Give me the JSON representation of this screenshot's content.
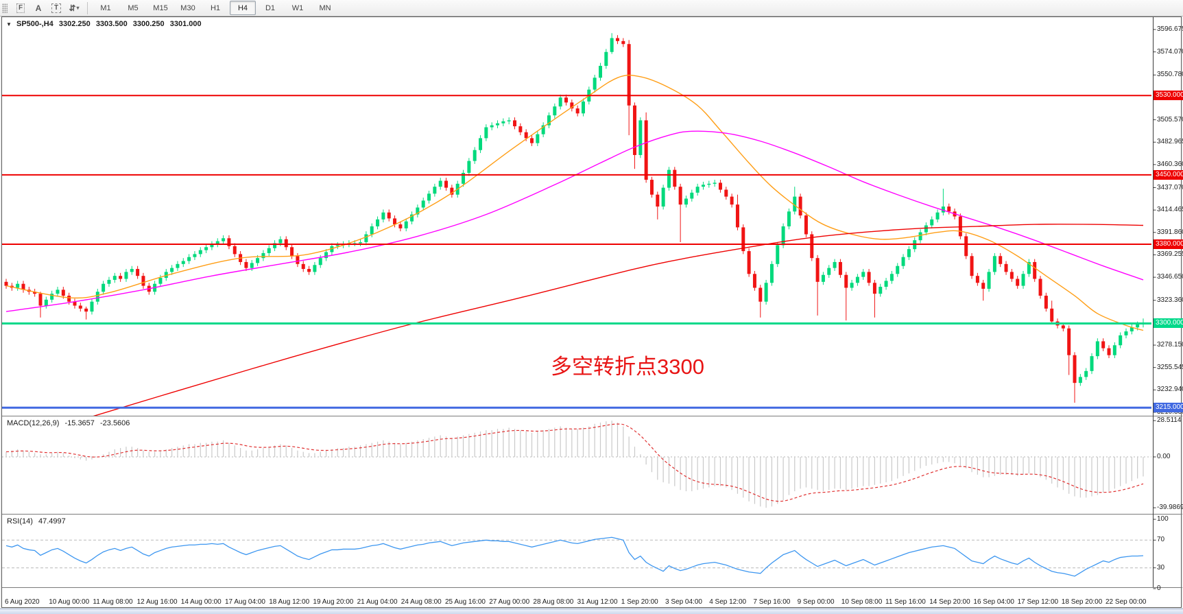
{
  "toolbar": {
    "tools": [
      {
        "name": "fibonacci-tool",
        "glyph": "F"
      },
      {
        "name": "text-tool",
        "glyph": "A"
      },
      {
        "name": "text-label-tool",
        "glyph": "T"
      },
      {
        "name": "arrows-tool",
        "glyph": "⇵"
      }
    ],
    "dropdown_caret": "▾",
    "timeframes": [
      "M1",
      "M5",
      "M15",
      "M30",
      "H1",
      "H4",
      "D1",
      "W1",
      "MN"
    ],
    "active_timeframe": "H4"
  },
  "title_bar": {
    "collapse_glyph": "▼",
    "symbol": "SP500-,H4",
    "open": "3302.250",
    "high": "3303.500",
    "low": "3300.250",
    "close": "3301.000"
  },
  "chart_data": {
    "type": "candlestick",
    "symbol": "SP500-",
    "timeframe": "H4",
    "ohlc_display": {
      "open": "3302.250",
      "high": "3303.500",
      "low": "3300.250",
      "close": "3301.000"
    },
    "colors": {
      "up": "#00d97c",
      "down": "#f01414",
      "level_red": "#ee0000",
      "level_green": "#00e57d",
      "level_blue": "#4169e1"
    },
    "y_axis_ticks": [
      "3596.675",
      "3574.070",
      "3550.780",
      "3505.570",
      "3482.965",
      "3460.360",
      "3437.070",
      "3414.465",
      "3391.860",
      "3369.255",
      "3346.650",
      "3323.360",
      "3278.150",
      "3255.545",
      "3232.940",
      "3210.335"
    ],
    "level_badges": [
      {
        "label": "3530.000",
        "price": 3530,
        "color": "#ee0000",
        "width": 2
      },
      {
        "label": "3450.000",
        "price": 3450,
        "color": "#ee0000",
        "width": 2
      },
      {
        "label": "3380.000",
        "price": 3380,
        "color": "#ee0000",
        "width": 2
      },
      {
        "label": "3300.000",
        "price": 3300,
        "color": "#00d98a",
        "width": 3
      },
      {
        "label": "3215.000",
        "price": 3215,
        "color": "#4169e1",
        "width": 3
      }
    ],
    "x_axis": [
      "6 Aug 2020",
      "10 Aug 00:00",
      "11 Aug 08:00",
      "12 Aug 16:00",
      "14 Aug 00:00",
      "17 Aug 04:00",
      "18 Aug 12:00",
      "19 Aug 20:00",
      "21 Aug 04:00",
      "24 Aug 08:00",
      "25 Aug 16:00",
      "27 Aug 00:00",
      "28 Aug 08:00",
      "31 Aug 12:00",
      "1 Sep 20:00",
      "3 Sep 04:00",
      "4 Sep 12:00",
      "7 Sep 16:00",
      "9 Sep 00:00",
      "10 Sep 08:00",
      "11 Sep 16:00",
      "14 Sep 20:00",
      "16 Sep 04:00",
      "17 Sep 12:00",
      "18 Sep 20:00",
      "22 Sep 00:00"
    ],
    "candles": {
      "open0": 3342,
      "default_wick": 3,
      "closes": [
        3338,
        3336,
        3340,
        3334,
        3332,
        3330,
        3318,
        3324,
        3330,
        3334,
        3328,
        3322,
        3318,
        3315,
        3312,
        3322,
        3332,
        3340,
        3344,
        3348,
        3345,
        3352,
        3355,
        3348,
        3338,
        3332,
        3340,
        3346,
        3352,
        3356,
        3360,
        3363,
        3367,
        3370,
        3374,
        3377,
        3380,
        3383,
        3386,
        3378,
        3370,
        3362,
        3356,
        3361,
        3366,
        3371,
        3376,
        3381,
        3385,
        3377,
        3368,
        3360,
        3355,
        3352,
        3359,
        3366,
        3372,
        3378,
        3379,
        3380,
        3381,
        3381,
        3382,
        3390,
        3398,
        3405,
        3412,
        3406,
        3400,
        3396,
        3403,
        3410,
        3417,
        3424,
        3431,
        3438,
        3444,
        3437,
        3430,
        3441,
        3452,
        3464,
        3475,
        3487,
        3498,
        3500,
        3502,
        3504,
        3505,
        3499,
        3493,
        3487,
        3482,
        3491,
        3500,
        3510,
        3519,
        3528,
        3523,
        3517,
        3512,
        3524,
        3536,
        3548,
        3560,
        3574,
        3588,
        3585,
        3582,
        3520,
        3470,
        3505,
        3445,
        3430,
        3418,
        3437,
        3455,
        3438,
        3420,
        3426,
        3432,
        3438,
        3440,
        3441,
        3442,
        3435,
        3428,
        3420,
        3397,
        3373,
        3350,
        3336,
        3322,
        3341,
        3360,
        3379,
        3398,
        3413,
        3428,
        3409,
        3390,
        3366,
        3342,
        3349,
        3356,
        3362,
        3349,
        3336,
        3341,
        3347,
        3352,
        3341,
        3330,
        3337,
        3343,
        3350,
        3358,
        3367,
        3375,
        3384,
        3392,
        3399,
        3405,
        3412,
        3418,
        3413,
        3408,
        3388,
        3368,
        3348,
        3341,
        3335,
        3352,
        3368,
        3360,
        3352,
        3345,
        3338,
        3350,
        3362,
        3345,
        3328,
        3315,
        3302,
        3298,
        3295,
        3268,
        3240,
        3246,
        3252,
        3267,
        3282,
        3275,
        3268,
        3278,
        3288,
        3292,
        3296,
        3299,
        3301
      ],
      "long_wicks": {
        "6": [
          2,
          12
        ],
        "14": [
          2,
          8
        ],
        "106": [
          5,
          2
        ],
        "109": [
          4,
          30
        ],
        "110": [
          3,
          14
        ],
        "112": [
          8,
          3
        ],
        "114": [
          3,
          13
        ],
        "118": [
          3,
          38
        ],
        "128": [
          10,
          3
        ],
        "132": [
          3,
          16
        ],
        "138": [
          10,
          3
        ],
        "142": [
          3,
          34
        ],
        "147": [
          3,
          33
        ],
        "152": [
          3,
          24
        ],
        "164": [
          18,
          3
        ],
        "171": [
          3,
          12
        ],
        "183": [
          8,
          3
        ],
        "186": [
          3,
          20
        ],
        "187": [
          3,
          20
        ],
        "199": [
          4,
          3
        ]
      }
    },
    "moving_averages": [
      {
        "name": "ma-fast",
        "color": "#ff9e16",
        "points": [
          [
            0,
            3338
          ],
          [
            11,
            3326
          ],
          [
            18,
            3331
          ],
          [
            29,
            3350
          ],
          [
            41,
            3366
          ],
          [
            53,
            3370
          ],
          [
            65,
            3392
          ],
          [
            77,
            3428
          ],
          [
            89,
            3478
          ],
          [
            101,
            3526
          ],
          [
            107,
            3548
          ],
          [
            111,
            3549
          ],
          [
            116,
            3538
          ],
          [
            121,
            3520
          ],
          [
            125,
            3495
          ],
          [
            130,
            3462
          ],
          [
            134,
            3438
          ],
          [
            139,
            3415
          ],
          [
            143,
            3400
          ],
          [
            148,
            3390
          ],
          [
            153,
            3385
          ],
          [
            158,
            3387
          ],
          [
            163,
            3392
          ],
          [
            167,
            3393
          ],
          [
            172,
            3384
          ],
          [
            177,
            3368
          ],
          [
            182,
            3348
          ],
          [
            187,
            3328
          ],
          [
            191,
            3310
          ],
          [
            196,
            3298
          ],
          [
            199,
            3293
          ]
        ]
      },
      {
        "name": "ma-medium",
        "color": "#ff00ff",
        "points": [
          [
            0,
            3312
          ],
          [
            12,
            3322
          ],
          [
            24,
            3334
          ],
          [
            36,
            3348
          ],
          [
            48,
            3360
          ],
          [
            60,
            3372
          ],
          [
            72,
            3388
          ],
          [
            84,
            3410
          ],
          [
            96,
            3440
          ],
          [
            104,
            3462
          ],
          [
            110,
            3478
          ],
          [
            116,
            3490
          ],
          [
            120,
            3494
          ],
          [
            126,
            3492
          ],
          [
            132,
            3484
          ],
          [
            138,
            3472
          ],
          [
            144,
            3458
          ],
          [
            150,
            3443
          ],
          [
            156,
            3430
          ],
          [
            162,
            3418
          ],
          [
            168,
            3407
          ],
          [
            174,
            3396
          ],
          [
            180,
            3384
          ],
          [
            186,
            3371
          ],
          [
            192,
            3358
          ],
          [
            197,
            3348
          ],
          [
            199,
            3344
          ]
        ]
      },
      {
        "name": "ma-slow",
        "color": "#ee0000",
        "points": [
          [
            15,
            3206
          ],
          [
            30,
            3232
          ],
          [
            50,
            3266
          ],
          [
            70,
            3298
          ],
          [
            90,
            3326
          ],
          [
            110,
            3355
          ],
          [
            120,
            3367
          ],
          [
            130,
            3377
          ],
          [
            140,
            3386
          ],
          [
            150,
            3392
          ],
          [
            160,
            3396
          ],
          [
            170,
            3398
          ],
          [
            180,
            3400
          ],
          [
            190,
            3400
          ],
          [
            199,
            3399
          ]
        ]
      }
    ],
    "macd": {
      "name": "MACD(12,26,9)",
      "value1": "-15.3657",
      "value2": "-23.5606",
      "axis": [
        {
          "v": 28.5114,
          "label": "28.5114"
        },
        {
          "v": 0,
          "label": "0.00"
        },
        {
          "v": -39.9869,
          "label": "-39.9869"
        }
      ],
      "histogram_color": "#c9c9c9",
      "signal_color": "#e03030",
      "values": [
        4,
        5,
        6,
        5,
        4,
        3,
        2,
        2,
        3,
        4,
        3,
        1,
        -1,
        -2,
        -3,
        -2,
        0,
        2,
        4,
        6,
        7,
        8,
        8,
        7,
        5,
        4,
        4,
        5,
        6,
        7,
        8,
        9,
        10,
        10,
        11,
        11,
        12,
        12,
        13,
        11,
        9,
        7,
        5,
        5,
        6,
        7,
        8,
        9,
        10,
        9,
        7,
        5,
        4,
        3,
        3,
        4,
        5,
        6,
        7,
        7,
        8,
        8,
        9,
        10,
        11,
        12,
        13,
        12,
        11,
        10,
        11,
        12,
        13,
        14,
        15,
        16,
        17,
        16,
        15,
        16,
        17,
        18,
        19,
        20,
        21,
        21,
        22,
        22,
        23,
        22,
        21,
        20,
        19,
        20,
        21,
        22,
        23,
        24,
        23,
        22,
        22,
        23,
        24,
        26,
        27,
        28,
        28.5,
        27,
        24,
        16,
        8,
        2,
        -6,
        -12,
        -18,
        -20,
        -21,
        -23,
        -26,
        -27,
        -27,
        -26,
        -25,
        -24,
        -23,
        -23,
        -24,
        -26,
        -29,
        -32,
        -35,
        -37,
        -39,
        -40,
        -39,
        -37,
        -34,
        -30,
        -27,
        -25,
        -24,
        -25,
        -26,
        -27,
        -26,
        -25,
        -25,
        -26,
        -25,
        -24,
        -23,
        -23,
        -22,
        -21,
        -20,
        -19,
        -17,
        -15,
        -13,
        -11,
        -9,
        -7,
        -6,
        -5,
        -4,
        -4,
        -5,
        -7,
        -9,
        -12,
        -14,
        -16,
        -16,
        -15,
        -14,
        -14,
        -14,
        -15,
        -14,
        -13,
        -14,
        -16,
        -18,
        -21,
        -24,
        -26,
        -29,
        -31,
        -32,
        -32,
        -31,
        -30,
        -28,
        -27,
        -25,
        -23,
        -21,
        -19,
        -17,
        -15.4
      ]
    },
    "rsi": {
      "name": "RSI(14)",
      "value": "47.4997",
      "axis": [
        {
          "v": 100,
          "label": "100"
        },
        {
          "v": 70,
          "label": "70"
        },
        {
          "v": 30,
          "label": "30"
        },
        {
          "v": 0,
          "label": "0"
        }
      ],
      "levels": [
        70,
        30
      ],
      "color": "#3c96f0",
      "values": [
        62,
        60,
        63,
        58,
        56,
        55,
        48,
        52,
        56,
        58,
        54,
        49,
        44,
        40,
        37,
        42,
        48,
        53,
        56,
        58,
        55,
        58,
        60,
        55,
        50,
        47,
        52,
        55,
        58,
        60,
        61,
        62,
        63,
        63,
        64,
        64,
        65,
        64,
        65,
        60,
        56,
        52,
        49,
        52,
        55,
        57,
        59,
        61,
        62,
        57,
        52,
        47,
        44,
        42,
        46,
        50,
        53,
        56,
        56,
        57,
        57,
        57,
        58,
        60,
        62,
        63,
        65,
        62,
        59,
        57,
        59,
        61,
        63,
        64,
        66,
        67,
        68,
        65,
        62,
        64,
        66,
        67,
        68,
        69,
        70,
        69,
        69,
        68,
        68,
        66,
        64,
        62,
        60,
        62,
        64,
        66,
        68,
        70,
        68,
        66,
        65,
        67,
        69,
        71,
        72,
        73,
        74,
        72,
        70,
        52,
        42,
        47,
        38,
        33,
        29,
        25,
        33,
        29,
        26,
        28,
        31,
        34,
        36,
        37,
        38,
        36,
        34,
        31,
        28,
        26,
        24,
        23,
        22,
        30,
        37,
        43,
        49,
        52,
        55,
        48,
        42,
        37,
        32,
        35,
        38,
        41,
        37,
        33,
        36,
        39,
        42,
        38,
        34,
        37,
        40,
        43,
        46,
        49,
        52,
        54,
        56,
        58,
        60,
        61,
        62,
        60,
        58,
        52,
        46,
        40,
        38,
        36,
        42,
        47,
        43,
        40,
        37,
        35,
        40,
        44,
        38,
        33,
        29,
        25,
        23,
        22,
        20,
        18,
        23,
        28,
        32,
        36,
        40,
        38,
        42,
        45,
        46,
        47,
        47,
        47.5
      ]
    },
    "annotation": {
      "text": "多空转折点3300",
      "color": "#e81414"
    }
  }
}
